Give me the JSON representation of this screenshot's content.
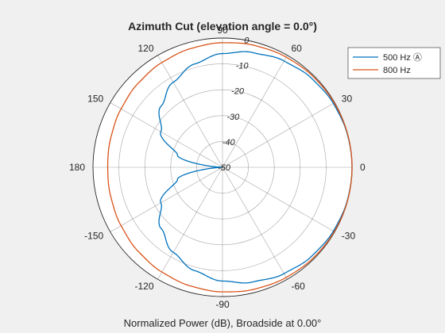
{
  "chart_data": {
    "type": "line",
    "coordinate_system": "polar",
    "title": "Azimuth Cut (elevation angle = 0.0°)",
    "xlabel": "Normalized Power (dB), Broadside at 0.00°",
    "angle_ticks": [
      "90",
      "60",
      "30",
      "0",
      "-30",
      "-60",
      "-90",
      "-120",
      "-150",
      "180",
      "150",
      "120"
    ],
    "angle_tick_values": [
      90,
      60,
      30,
      0,
      -30,
      -60,
      -90,
      -120,
      -150,
      180,
      150,
      120
    ],
    "radial_ticks": [
      "0",
      "-10",
      "-20",
      "-30",
      "-40",
      "-50"
    ],
    "radial_tick_values": [
      0,
      -10,
      -20,
      -30,
      -40,
      -50
    ],
    "rlim": [
      -50,
      0
    ],
    "grid": true,
    "legend_position": "top-right",
    "series": [
      {
        "name": "500 Hz",
        "legend_label": "500 Hz Ⓐ",
        "color": "#0072bd",
        "angle_deg": [
          0,
          15,
          30,
          45,
          60,
          75,
          90,
          105,
          120,
          135,
          150,
          165,
          180,
          -165,
          -150,
          -135,
          -120,
          -105,
          -90,
          -75,
          -60,
          -45,
          -30,
          -15
        ],
        "power_db": [
          0,
          -0.15,
          -0.6,
          -1.35,
          -2.5,
          -4.1,
          -6.0,
          -8.6,
          -12.0,
          -16.5,
          -22.5,
          -32.0,
          -50.0,
          -32.0,
          -22.5,
          -16.5,
          -12.0,
          -8.6,
          -6.0,
          -4.1,
          -2.5,
          -1.35,
          -0.6,
          -0.15
        ]
      },
      {
        "name": "800 Hz",
        "legend_label": "800 Hz",
        "color": "#d95319",
        "angle_deg": [
          0,
          15,
          30,
          45,
          60,
          75,
          90,
          105,
          120,
          135,
          150,
          165,
          180,
          -165,
          -150,
          -135,
          -120,
          -105,
          -90,
          -75,
          -60,
          -45,
          -30,
          -15
        ],
        "power_db": [
          0,
          -0.05,
          -0.2,
          -0.45,
          -0.8,
          -1.25,
          -1.8,
          -2.45,
          -3.2,
          -4.0,
          -4.8,
          -5.4,
          -5.7,
          -5.4,
          -4.8,
          -4.0,
          -3.2,
          -2.45,
          -1.8,
          -1.25,
          -0.8,
          -0.45,
          -0.2,
          -0.05
        ]
      }
    ]
  }
}
